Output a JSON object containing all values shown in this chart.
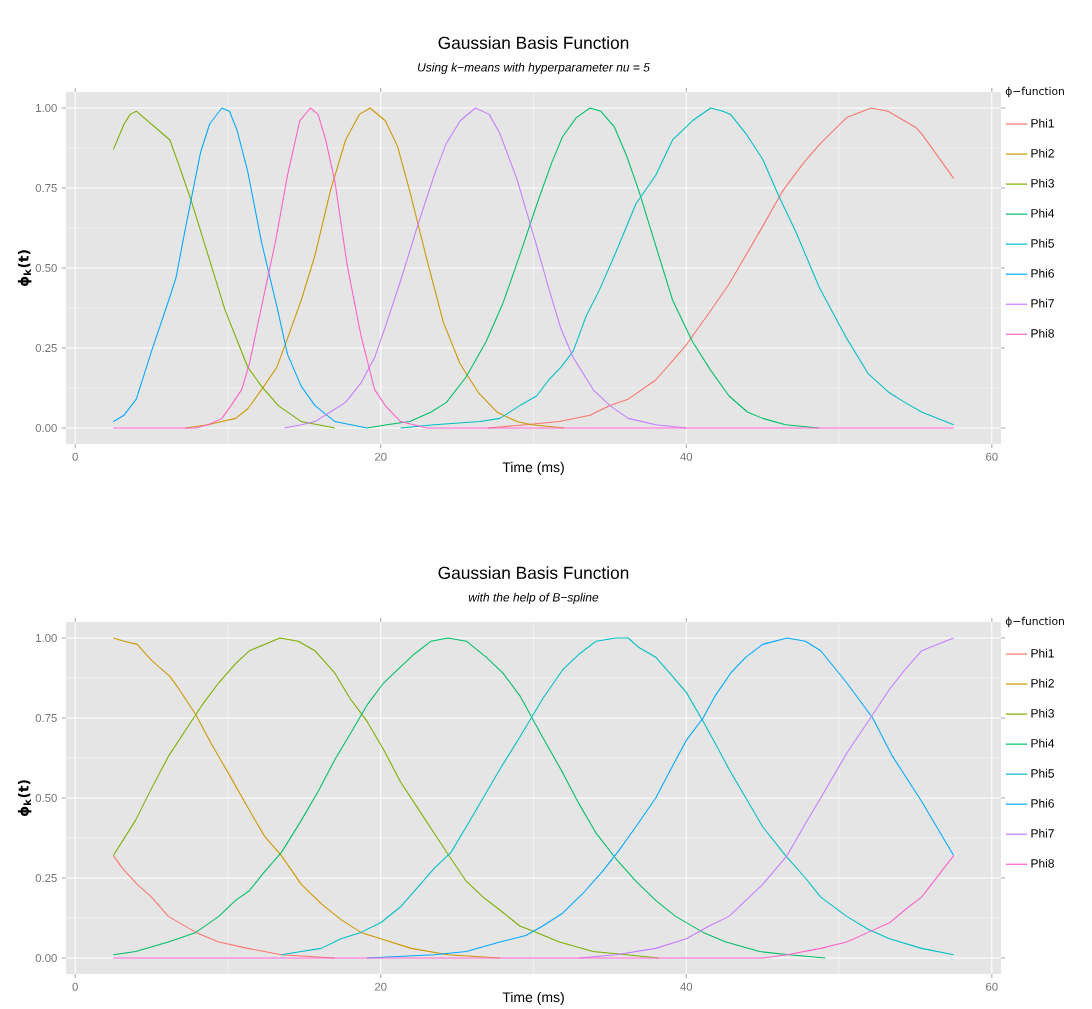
{
  "chart_data": [
    {
      "type": "line",
      "title": "Gaussian Basis Function",
      "subtitle": "Using k−means with hyperparameter  nu = 5",
      "xlabel": "Time (ms)",
      "ylabel": "ϕ$_{k}$(t)",
      "legend_title": "ϕ−function",
      "legend": "right",
      "grid": true,
      "xlim": [
        -0.6,
        60.6
      ],
      "ylim": [
        -0.05,
        1.05
      ],
      "xticks": [
        0,
        20,
        40,
        60
      ],
      "yticks": [
        {
          "value": 0,
          "label": "0.00"
        },
        {
          "value": 0.25,
          "label": "0.25"
        },
        {
          "value": 0.5,
          "label": "0.50"
        },
        {
          "value": 0.75,
          "label": "0.75"
        },
        {
          "value": 1,
          "label": "1.00"
        }
      ],
      "series": [
        {
          "name": "Phi1",
          "color": "#f8766d",
          "x": [
            27,
            29.5,
            31.7,
            33.7,
            35.0,
            36.2,
            38.0,
            39.1,
            40.0,
            41.5,
            42.8,
            43.9,
            45.0,
            46.3,
            47.7,
            48.8,
            50.5,
            52.1,
            53.2,
            55.0,
            55.4,
            57.5
          ],
          "values": [
            0,
            0.01,
            0.02,
            0.04,
            0.07,
            0.09,
            0.15,
            0.21,
            0.26,
            0.36,
            0.45,
            0.54,
            0.63,
            0.74,
            0.83,
            0.89,
            0.97,
            1.0,
            0.99,
            0.94,
            0.92,
            0.78
          ]
        },
        {
          "name": "Phi2",
          "color": "#cd9600",
          "x": [
            7.2,
            8.7,
            9.6,
            10.5,
            11.3,
            12.2,
            13.2,
            13.9,
            14.8,
            15.7,
            16.7,
            17.7,
            18.6,
            19.3,
            20.3,
            21.1,
            21.9,
            23.0,
            24.1,
            25.2,
            26.4,
            27.6,
            28.9,
            29.9,
            32
          ],
          "values": [
            0,
            0.01,
            0.02,
            0.03,
            0.06,
            0.12,
            0.19,
            0.28,
            0.4,
            0.54,
            0.74,
            0.9,
            0.98,
            1.0,
            0.96,
            0.88,
            0.74,
            0.53,
            0.33,
            0.2,
            0.11,
            0.05,
            0.02,
            0.01,
            0
          ]
        },
        {
          "name": "Phi3",
          "color": "#7cae00",
          "x": [
            2.5,
            3.2,
            3.6,
            4.0,
            6.2,
            6.8,
            7.6,
            8.7,
            9.8,
            11.3,
            12.2,
            13.3,
            14.8,
            17.0
          ],
          "values": [
            0.87,
            0.95,
            0.98,
            0.99,
            0.9,
            0.82,
            0.71,
            0.54,
            0.37,
            0.19,
            0.13,
            0.07,
            0.02,
            0
          ]
        },
        {
          "name": "Phi4",
          "color": "#00be67",
          "x": [
            19.1,
            20.4,
            21.9,
            23.3,
            24.3,
            25.6,
            26.9,
            28.0,
            29.1,
            30.3,
            31.2,
            31.9,
            32.8,
            33.7,
            34.4,
            35.3,
            36.1,
            36.9,
            38.0,
            39.1,
            40.4,
            41.6,
            42.8,
            44.0,
            45.0,
            46.5,
            48.7
          ],
          "values": [
            0,
            0.01,
            0.02,
            0.05,
            0.08,
            0.16,
            0.27,
            0.39,
            0.54,
            0.71,
            0.83,
            0.91,
            0.97,
            1.0,
            0.99,
            0.94,
            0.85,
            0.74,
            0.57,
            0.4,
            0.27,
            0.18,
            0.1,
            0.05,
            0.03,
            0.01,
            0
          ]
        },
        {
          "name": "Phi5",
          "color": "#00bfc4",
          "x": [
            21.3,
            23.5,
            26.5,
            27.8,
            29.1,
            30.2,
            31.0,
            31.8,
            32.6,
            33.45,
            34.3,
            35.4,
            36.7,
            38.0,
            39.1,
            40.4,
            41.6,
            42.4,
            42.9,
            43.9,
            45.0,
            46.1,
            47.2,
            48.7,
            50.5,
            51.9,
            53.3,
            54.3,
            55.4,
            57.5
          ],
          "values": [
            0,
            0.01,
            0.02,
            0.03,
            0.07,
            0.1,
            0.15,
            0.19,
            0.24,
            0.35,
            0.43,
            0.55,
            0.7,
            0.79,
            0.9,
            0.96,
            1.0,
            0.99,
            0.98,
            0.92,
            0.84,
            0.72,
            0.61,
            0.44,
            0.28,
            0.17,
            0.11,
            0.08,
            0.05,
            0.01
          ]
        },
        {
          "name": "Phi6",
          "color": "#00a9ff",
          "x": [
            2.5,
            3.2,
            4.0,
            5.0,
            6.2,
            6.6,
            7.2,
            8.2,
            8.8,
            9.6,
            10.1,
            10.6,
            11.3,
            12.2,
            13.2,
            13.9,
            14.8,
            15.7,
            17.0,
            19.1
          ],
          "values": [
            0.02,
            0.04,
            0.09,
            0.24,
            0.41,
            0.47,
            0.62,
            0.86,
            0.95,
            1.0,
            0.99,
            0.93,
            0.8,
            0.58,
            0.38,
            0.23,
            0.13,
            0.07,
            0.02,
            0
          ]
        },
        {
          "name": "Phi7",
          "color": "#c77cff",
          "x": [
            13.7,
            14.8,
            15.7,
            16.7,
            17.7,
            18.7,
            19.6,
            20.4,
            21.3,
            22.4,
            23.5,
            24.3,
            25.2,
            26.2,
            27.1,
            27.8,
            28.9,
            30.2,
            31.1,
            31.8,
            32.6,
            33.9,
            35.0,
            36.2,
            38.0,
            40.0
          ],
          "values": [
            0,
            0.01,
            0.02,
            0.05,
            0.08,
            0.14,
            0.22,
            0.33,
            0.46,
            0.63,
            0.79,
            0.89,
            0.96,
            1.0,
            0.98,
            0.92,
            0.78,
            0.57,
            0.42,
            0.31,
            0.22,
            0.12,
            0.07,
            0.03,
            0.01,
            0
          ]
        },
        {
          "name": "Phi8",
          "color": "#ff61cc",
          "x": [
            2.5,
            7.9,
            8.7,
            9.6,
            10.2,
            10.9,
            11.4,
            12.2,
            13.1,
            13.9,
            14.7,
            15.4,
            15.9,
            16.4,
            17.0,
            17.8,
            18.7,
            19.6,
            20.3,
            21.3,
            23.0,
            57.5
          ],
          "values": [
            0,
            0,
            0.01,
            0.03,
            0.07,
            0.12,
            0.2,
            0.38,
            0.58,
            0.79,
            0.96,
            1.0,
            0.98,
            0.9,
            0.77,
            0.51,
            0.29,
            0.12,
            0.07,
            0.02,
            0,
            0
          ]
        }
      ]
    },
    {
      "type": "line",
      "title": "Gaussian Basis Function",
      "subtitle": "with the help of B−spline",
      "xlabel": "Time (ms)",
      "ylabel": "ϕ$_{k}$(t)",
      "legend_title": "ϕ−function",
      "legend": "right",
      "grid": true,
      "xlim": [
        -0.6,
        60.6
      ],
      "ylim": [
        -0.05,
        1.05
      ],
      "xticks": [
        0,
        20,
        40,
        60
      ],
      "yticks": [
        {
          "value": 0,
          "label": "0.00"
        },
        {
          "value": 0.25,
          "label": "0.25"
        },
        {
          "value": 0.5,
          "label": "0.50"
        },
        {
          "value": 0.75,
          "label": "0.75"
        },
        {
          "value": 1,
          "label": "1.00"
        }
      ],
      "series": [
        {
          "name": "Phi1",
          "color": "#f8766d",
          "x": [
            2.5,
            3.1,
            4.06,
            5.0,
            6.1,
            7.9,
            9.4,
            11.3,
            13.5,
            17.0
          ],
          "values": [
            0.32,
            0.28,
            0.23,
            0.19,
            0.13,
            0.08,
            0.05,
            0.03,
            0.01,
            0
          ]
        },
        {
          "name": "Phi2",
          "color": "#cd9600",
          "x": [
            2.5,
            3.2,
            4.06,
            5.0,
            6.2,
            6.8,
            7.9,
            8.9,
            10.0,
            11.3,
            12.4,
            13.5,
            14.8,
            16.1,
            17.4,
            18.7,
            20.0,
            22.0,
            24.4,
            27.8
          ],
          "values": [
            1.0,
            0.99,
            0.98,
            0.93,
            0.88,
            0.84,
            0.76,
            0.67,
            0.58,
            0.47,
            0.38,
            0.32,
            0.23,
            0.17,
            0.12,
            0.08,
            0.06,
            0.03,
            0.01,
            0
          ]
        },
        {
          "name": "Phi3",
          "color": "#7cae00",
          "x": [
            2.5,
            3.95,
            5.0,
            6.1,
            7.2,
            8.3,
            9.4,
            10.5,
            11.4,
            12.4,
            13.4,
            14.6,
            15.7,
            17.0,
            18.0,
            19.1,
            20.2,
            21.3,
            22.4,
            23.5,
            24.6,
            25.6,
            26.7,
            27.8,
            29.1,
            30.2,
            31.7,
            33.9,
            36.1,
            38.2
          ],
          "values": [
            0.32,
            0.43,
            0.53,
            0.63,
            0.71,
            0.79,
            0.86,
            0.92,
            0.96,
            0.98,
            1.0,
            0.99,
            0.96,
            0.89,
            0.81,
            0.74,
            0.65,
            0.55,
            0.47,
            0.39,
            0.31,
            0.24,
            0.19,
            0.15,
            0.1,
            0.08,
            0.05,
            0.02,
            0.01,
            0
          ]
        },
        {
          "name": "Phi4",
          "color": "#00be67",
          "x": [
            2.5,
            3.95,
            6.1,
            7.9,
            9.4,
            10.5,
            11.4,
            12.4,
            13.5,
            14.8,
            15.9,
            17.0,
            18.0,
            19.1,
            20.2,
            21.3,
            22.2,
            23.3,
            24.4,
            25.6,
            26.9,
            28.0,
            29.1,
            30.6,
            31.9,
            33.0,
            34.1,
            35.4,
            36.7,
            38.0,
            39.3,
            41.1,
            42.6,
            44.8,
            46.7,
            49.1
          ],
          "values": [
            0.01,
            0.02,
            0.05,
            0.08,
            0.13,
            0.18,
            0.21,
            0.27,
            0.33,
            0.43,
            0.52,
            0.62,
            0.7,
            0.79,
            0.86,
            0.91,
            0.95,
            0.99,
            1.0,
            0.99,
            0.94,
            0.89,
            0.82,
            0.69,
            0.58,
            0.48,
            0.39,
            0.31,
            0.24,
            0.18,
            0.13,
            0.08,
            0.05,
            0.02,
            0.01,
            0
          ]
        },
        {
          "name": "Phi5",
          "color": "#00bfc4",
          "x": [
            13.5,
            14.8,
            16.1,
            17.4,
            18.7,
            20.0,
            21.3,
            22.4,
            23.5,
            24.6,
            25.6,
            26.7,
            27.8,
            29.1,
            30.6,
            31.9,
            33.0,
            34.1,
            35.4,
            36.2,
            36.9,
            38.0,
            39.1,
            40.0,
            41.1,
            41.9,
            42.8,
            43.9,
            45.0,
            46.5,
            47.8,
            48.8,
            50.5,
            51.9,
            53.3,
            55.4,
            57.5
          ],
          "values": [
            0.01,
            0.02,
            0.03,
            0.06,
            0.08,
            0.11,
            0.16,
            0.22,
            0.28,
            0.33,
            0.41,
            0.5,
            0.59,
            0.69,
            0.81,
            0.9,
            0.95,
            0.99,
            1.0,
            1.0,
            0.97,
            0.94,
            0.88,
            0.83,
            0.74,
            0.67,
            0.59,
            0.5,
            0.41,
            0.32,
            0.25,
            0.19,
            0.13,
            0.09,
            0.06,
            0.03,
            0.01
          ]
        },
        {
          "name": "Phi6",
          "color": "#00a9ff",
          "x": [
            19.1,
            23.5,
            25.6,
            27.8,
            29.5,
            30.6,
            31.9,
            33.2,
            34.5,
            35.5,
            36.7,
            38.0,
            39.1,
            40.0,
            41.1,
            41.9,
            42.9,
            43.9,
            45.0,
            46.6,
            47.8,
            48.8,
            50.5,
            52.2,
            53.5,
            55.4,
            57.5
          ],
          "values": [
            0,
            0.01,
            0.02,
            0.05,
            0.07,
            0.1,
            0.14,
            0.2,
            0.27,
            0.33,
            0.41,
            0.5,
            0.6,
            0.68,
            0.75,
            0.82,
            0.89,
            0.94,
            0.98,
            1.0,
            0.99,
            0.96,
            0.86,
            0.75,
            0.63,
            0.49,
            0.32
          ]
        },
        {
          "name": "Phi7",
          "color": "#c77cff",
          "x": [
            33.0,
            35.4,
            38.0,
            40.0,
            41.5,
            42.8,
            43.9,
            45.0,
            46.6,
            47.8,
            48.8,
            50.5,
            52.2,
            53.3,
            54.3,
            55.4,
            57.5
          ],
          "values": [
            0,
            0.01,
            0.03,
            0.06,
            0.1,
            0.13,
            0.18,
            0.23,
            0.32,
            0.42,
            0.5,
            0.64,
            0.76,
            0.84,
            0.9,
            0.96,
            1.0
          ]
        },
        {
          "name": "Phi8",
          "color": "#ff61cc",
          "x": [
            2.5,
            45.0,
            46.6,
            48.8,
            50.5,
            51.9,
            53.3,
            54.3,
            55.4,
            57.5
          ],
          "values": [
            0,
            0,
            0.01,
            0.03,
            0.05,
            0.08,
            0.11,
            0.15,
            0.19,
            0.32
          ]
        }
      ]
    }
  ]
}
